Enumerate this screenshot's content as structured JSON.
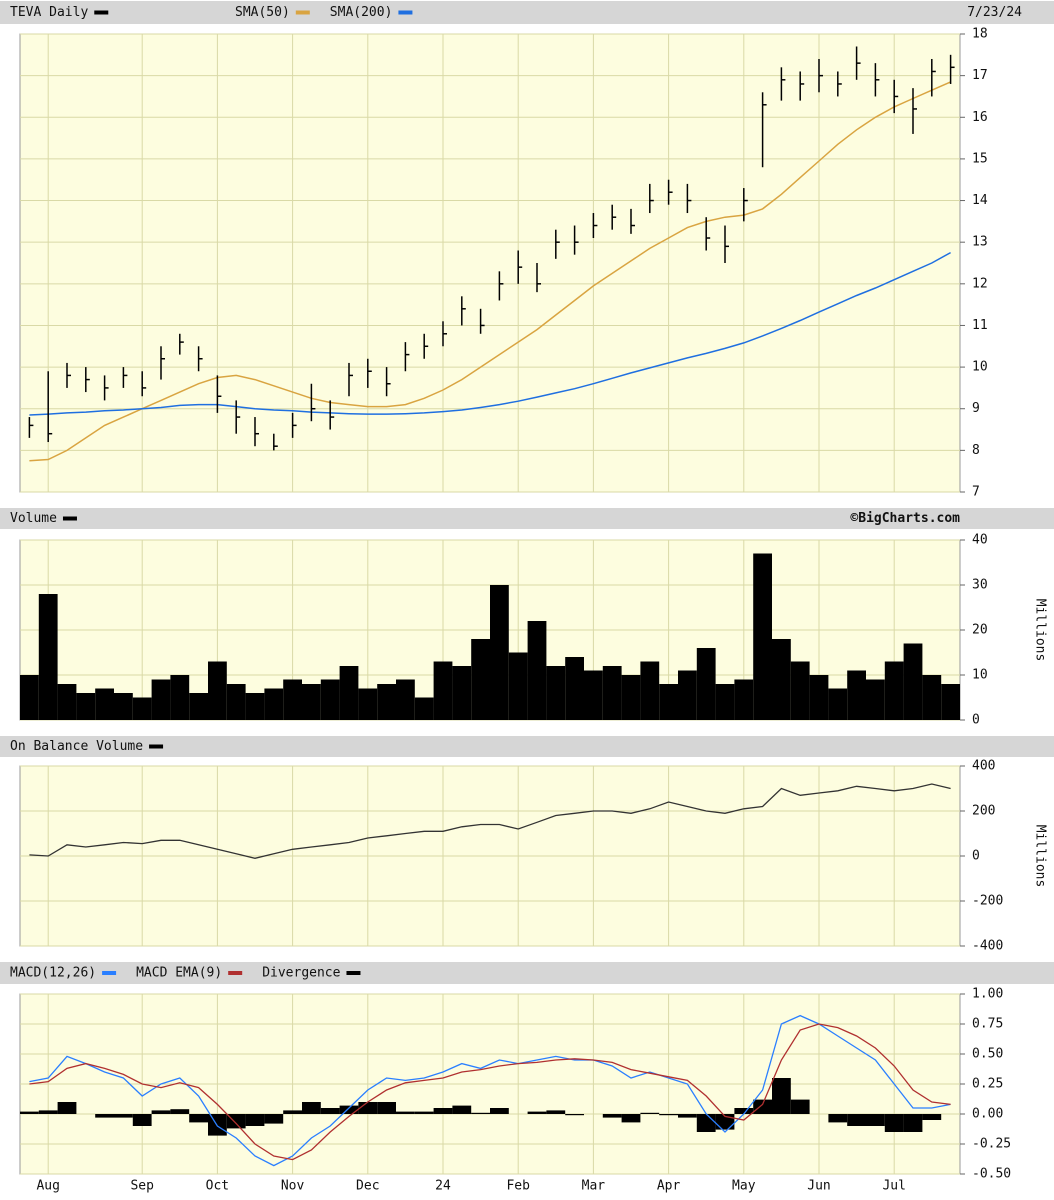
{
  "chart_data": [
    {
      "type": "ohlc",
      "title": "TEVA Daily",
      "color": "#000000",
      "date": "7/23/24",
      "high": [
        8.8,
        9.9,
        10.1,
        10.0,
        9.8,
        10.0,
        9.9,
        10.5,
        10.8,
        10.5,
        9.8,
        9.2,
        8.8,
        8.4,
        8.9,
        9.6,
        9.2,
        10.1,
        10.2,
        10.0,
        10.6,
        10.8,
        11.1,
        11.7,
        11.4,
        12.3,
        12.8,
        12.5,
        13.3,
        13.4,
        13.7,
        13.9,
        13.8,
        14.4,
        14.5,
        14.4,
        13.6,
        13.4,
        14.3,
        16.6,
        17.2,
        17.1,
        17.4,
        17.1,
        17.7,
        17.3,
        16.9,
        16.7,
        17.4,
        17.5
      ],
      "low": [
        8.3,
        8.2,
        9.5,
        9.4,
        9.2,
        9.5,
        9.3,
        9.7,
        10.3,
        9.9,
        8.9,
        8.4,
        8.1,
        8.0,
        8.3,
        8.7,
        8.5,
        9.3,
        9.5,
        9.3,
        9.9,
        10.2,
        10.5,
        11.0,
        10.8,
        11.6,
        12.0,
        11.8,
        12.6,
        12.7,
        13.1,
        13.3,
        13.2,
        13.7,
        13.9,
        13.7,
        12.8,
        12.5,
        13.5,
        14.8,
        16.4,
        16.4,
        16.6,
        16.5,
        16.9,
        16.5,
        16.1,
        15.6,
        16.5,
        16.8
      ],
      "close": [
        8.6,
        8.4,
        9.8,
        9.7,
        9.5,
        9.8,
        9.5,
        10.2,
        10.6,
        10.2,
        9.3,
        8.8,
        8.4,
        8.1,
        8.6,
        9.0,
        8.8,
        9.8,
        9.9,
        9.6,
        10.3,
        10.5,
        10.8,
        11.4,
        11.0,
        12.0,
        12.4,
        12.0,
        13.0,
        13.0,
        13.4,
        13.6,
        13.4,
        14.0,
        14.2,
        14.0,
        13.1,
        12.9,
        14.0,
        16.3,
        16.9,
        16.8,
        17.0,
        16.8,
        17.3,
        16.9,
        16.5,
        16.2,
        17.1,
        17.2
      ],
      "series": [
        {
          "name": "SMA(50)",
          "color": "#d9a441",
          "values": [
            7.75,
            7.78,
            8.0,
            8.3,
            8.6,
            8.8,
            9.0,
            9.2,
            9.4,
            9.6,
            9.75,
            9.8,
            9.7,
            9.55,
            9.4,
            9.25,
            9.15,
            9.1,
            9.05,
            9.05,
            9.1,
            9.25,
            9.45,
            9.7,
            10.0,
            10.3,
            10.6,
            10.9,
            11.25,
            11.6,
            11.95,
            12.25,
            12.55,
            12.85,
            13.1,
            13.35,
            13.5,
            13.6,
            13.65,
            13.8,
            14.15,
            14.55,
            14.95,
            15.35,
            15.7,
            16.0,
            16.25,
            16.45,
            16.65,
            16.85
          ]
        },
        {
          "name": "SMA(200)",
          "color": "#1f6fe0",
          "values": [
            8.85,
            8.87,
            8.9,
            8.92,
            8.95,
            8.97,
            9.0,
            9.03,
            9.08,
            9.1,
            9.1,
            9.05,
            9.0,
            8.97,
            8.95,
            8.92,
            8.9,
            8.88,
            8.87,
            8.87,
            8.88,
            8.9,
            8.93,
            8.97,
            9.03,
            9.1,
            9.18,
            9.28,
            9.38,
            9.48,
            9.6,
            9.73,
            9.86,
            9.98,
            10.1,
            10.22,
            10.33,
            10.45,
            10.58,
            10.75,
            10.93,
            11.12,
            11.32,
            11.52,
            11.72,
            11.9,
            12.1,
            12.3,
            12.5,
            12.75
          ]
        }
      ],
      "ylim": [
        7,
        18
      ],
      "yticks": [
        7,
        8,
        9,
        10,
        11,
        12,
        13,
        14,
        15,
        16,
        17,
        18
      ],
      "grid": true
    },
    {
      "type": "bar",
      "title": "Volume",
      "color": "#000000",
      "credit": "©BigCharts.com",
      "ylabel": "Millions",
      "values": [
        10,
        28,
        8,
        6,
        7,
        6,
        5,
        9,
        10,
        6,
        13,
        8,
        6,
        7,
        9,
        8,
        9,
        12,
        7,
        8,
        9,
        5,
        13,
        12,
        18,
        30,
        15,
        22,
        12,
        14,
        11,
        12,
        10,
        13,
        8,
        11,
        16,
        8,
        9,
        37,
        18,
        13,
        10,
        7,
        11,
        9,
        13,
        17,
        10,
        8
      ],
      "ylim": [
        0,
        40
      ],
      "yticks": [
        0,
        10,
        20,
        30,
        40
      ],
      "grid": true
    },
    {
      "type": "line",
      "title": "On Balance Volume",
      "color": "#000000",
      "ylabel": "Millions",
      "series": [
        {
          "color": "#333333",
          "values": [
            5,
            0,
            50,
            40,
            50,
            60,
            55,
            70,
            70,
            50,
            30,
            10,
            -10,
            10,
            30,
            40,
            50,
            60,
            80,
            90,
            100,
            110,
            110,
            130,
            140,
            140,
            120,
            150,
            180,
            190,
            200,
            200,
            190,
            210,
            240,
            220,
            200,
            190,
            210,
            220,
            300,
            270,
            280,
            290,
            310,
            300,
            290,
            300,
            320,
            300
          ]
        }
      ],
      "ylim": [
        -400,
        400
      ],
      "yticks": [
        -400,
        -200,
        0,
        200,
        400
      ],
      "grid": true
    },
    {
      "type": "line",
      "categories": [
        null,
        "Aug",
        null,
        null,
        null,
        null,
        "Sep",
        null,
        null,
        null,
        "Oct",
        null,
        null,
        null,
        "Nov",
        null,
        null,
        null,
        "Dec",
        null,
        null,
        null,
        "24",
        null,
        null,
        null,
        "Feb",
        null,
        null,
        null,
        "Mar",
        null,
        null,
        null,
        "Apr",
        null,
        null,
        null,
        "May",
        null,
        null,
        null,
        "Jun",
        null,
        null,
        null,
        "Jul",
        null,
        null,
        null
      ],
      "series": [
        {
          "name": "MACD(12,26)",
          "color": "#2a7fff",
          "values": [
            0.27,
            0.3,
            0.48,
            0.42,
            0.35,
            0.3,
            0.15,
            0.25,
            0.3,
            0.15,
            -0.1,
            -0.2,
            -0.35,
            -0.43,
            -0.35,
            -0.2,
            -0.1,
            0.05,
            0.2,
            0.3,
            0.28,
            0.3,
            0.35,
            0.42,
            0.38,
            0.45,
            0.42,
            0.45,
            0.48,
            0.45,
            0.45,
            0.4,
            0.3,
            0.35,
            0.3,
            0.25,
            0.0,
            -0.15,
            0.0,
            0.2,
            0.75,
            0.82,
            0.75,
            0.65,
            0.55,
            0.45,
            0.25,
            0.05,
            0.05,
            0.08
          ]
        },
        {
          "name": "MACD EMA(9)",
          "color": "#b03030",
          "values": [
            0.25,
            0.27,
            0.38,
            0.42,
            0.38,
            0.33,
            0.25,
            0.22,
            0.26,
            0.22,
            0.08,
            -0.08,
            -0.25,
            -0.35,
            -0.38,
            -0.3,
            -0.15,
            -0.02,
            0.1,
            0.2,
            0.26,
            0.28,
            0.3,
            0.35,
            0.37,
            0.4,
            0.42,
            0.43,
            0.45,
            0.46,
            0.45,
            0.43,
            0.37,
            0.34,
            0.31,
            0.28,
            0.15,
            -0.02,
            -0.05,
            0.08,
            0.45,
            0.7,
            0.75,
            0.72,
            0.65,
            0.55,
            0.4,
            0.2,
            0.1,
            0.08
          ]
        },
        {
          "name": "Divergence",
          "color": "#000000",
          "type": "bar",
          "values": [
            0.02,
            0.03,
            0.1,
            0.0,
            -0.03,
            -0.03,
            -0.1,
            0.03,
            0.04,
            -0.07,
            -0.18,
            -0.12,
            -0.1,
            -0.08,
            0.03,
            0.1,
            0.05,
            0.07,
            0.1,
            0.1,
            0.02,
            0.02,
            0.05,
            0.07,
            0.01,
            0.05,
            0.0,
            0.02,
            0.03,
            -0.01,
            0.0,
            -0.03,
            -0.07,
            0.01,
            -0.01,
            -0.03,
            -0.15,
            -0.13,
            0.05,
            0.12,
            0.3,
            0.12,
            0.0,
            -0.07,
            -0.1,
            -0.1,
            -0.15,
            -0.15,
            -0.05,
            0.0
          ]
        }
      ],
      "ylim": [
        -0.5,
        1.0
      ],
      "yticks": [
        {
          "value": -0.5,
          "label": "-0.50"
        },
        -0.25,
        {
          "value": 0,
          "label": "0.00"
        },
        0.25,
        {
          "value": 0.5,
          "label": "0.50"
        },
        0.75,
        {
          "value": 1,
          "label": "1.00"
        }
      ],
      "grid": true
    }
  ]
}
